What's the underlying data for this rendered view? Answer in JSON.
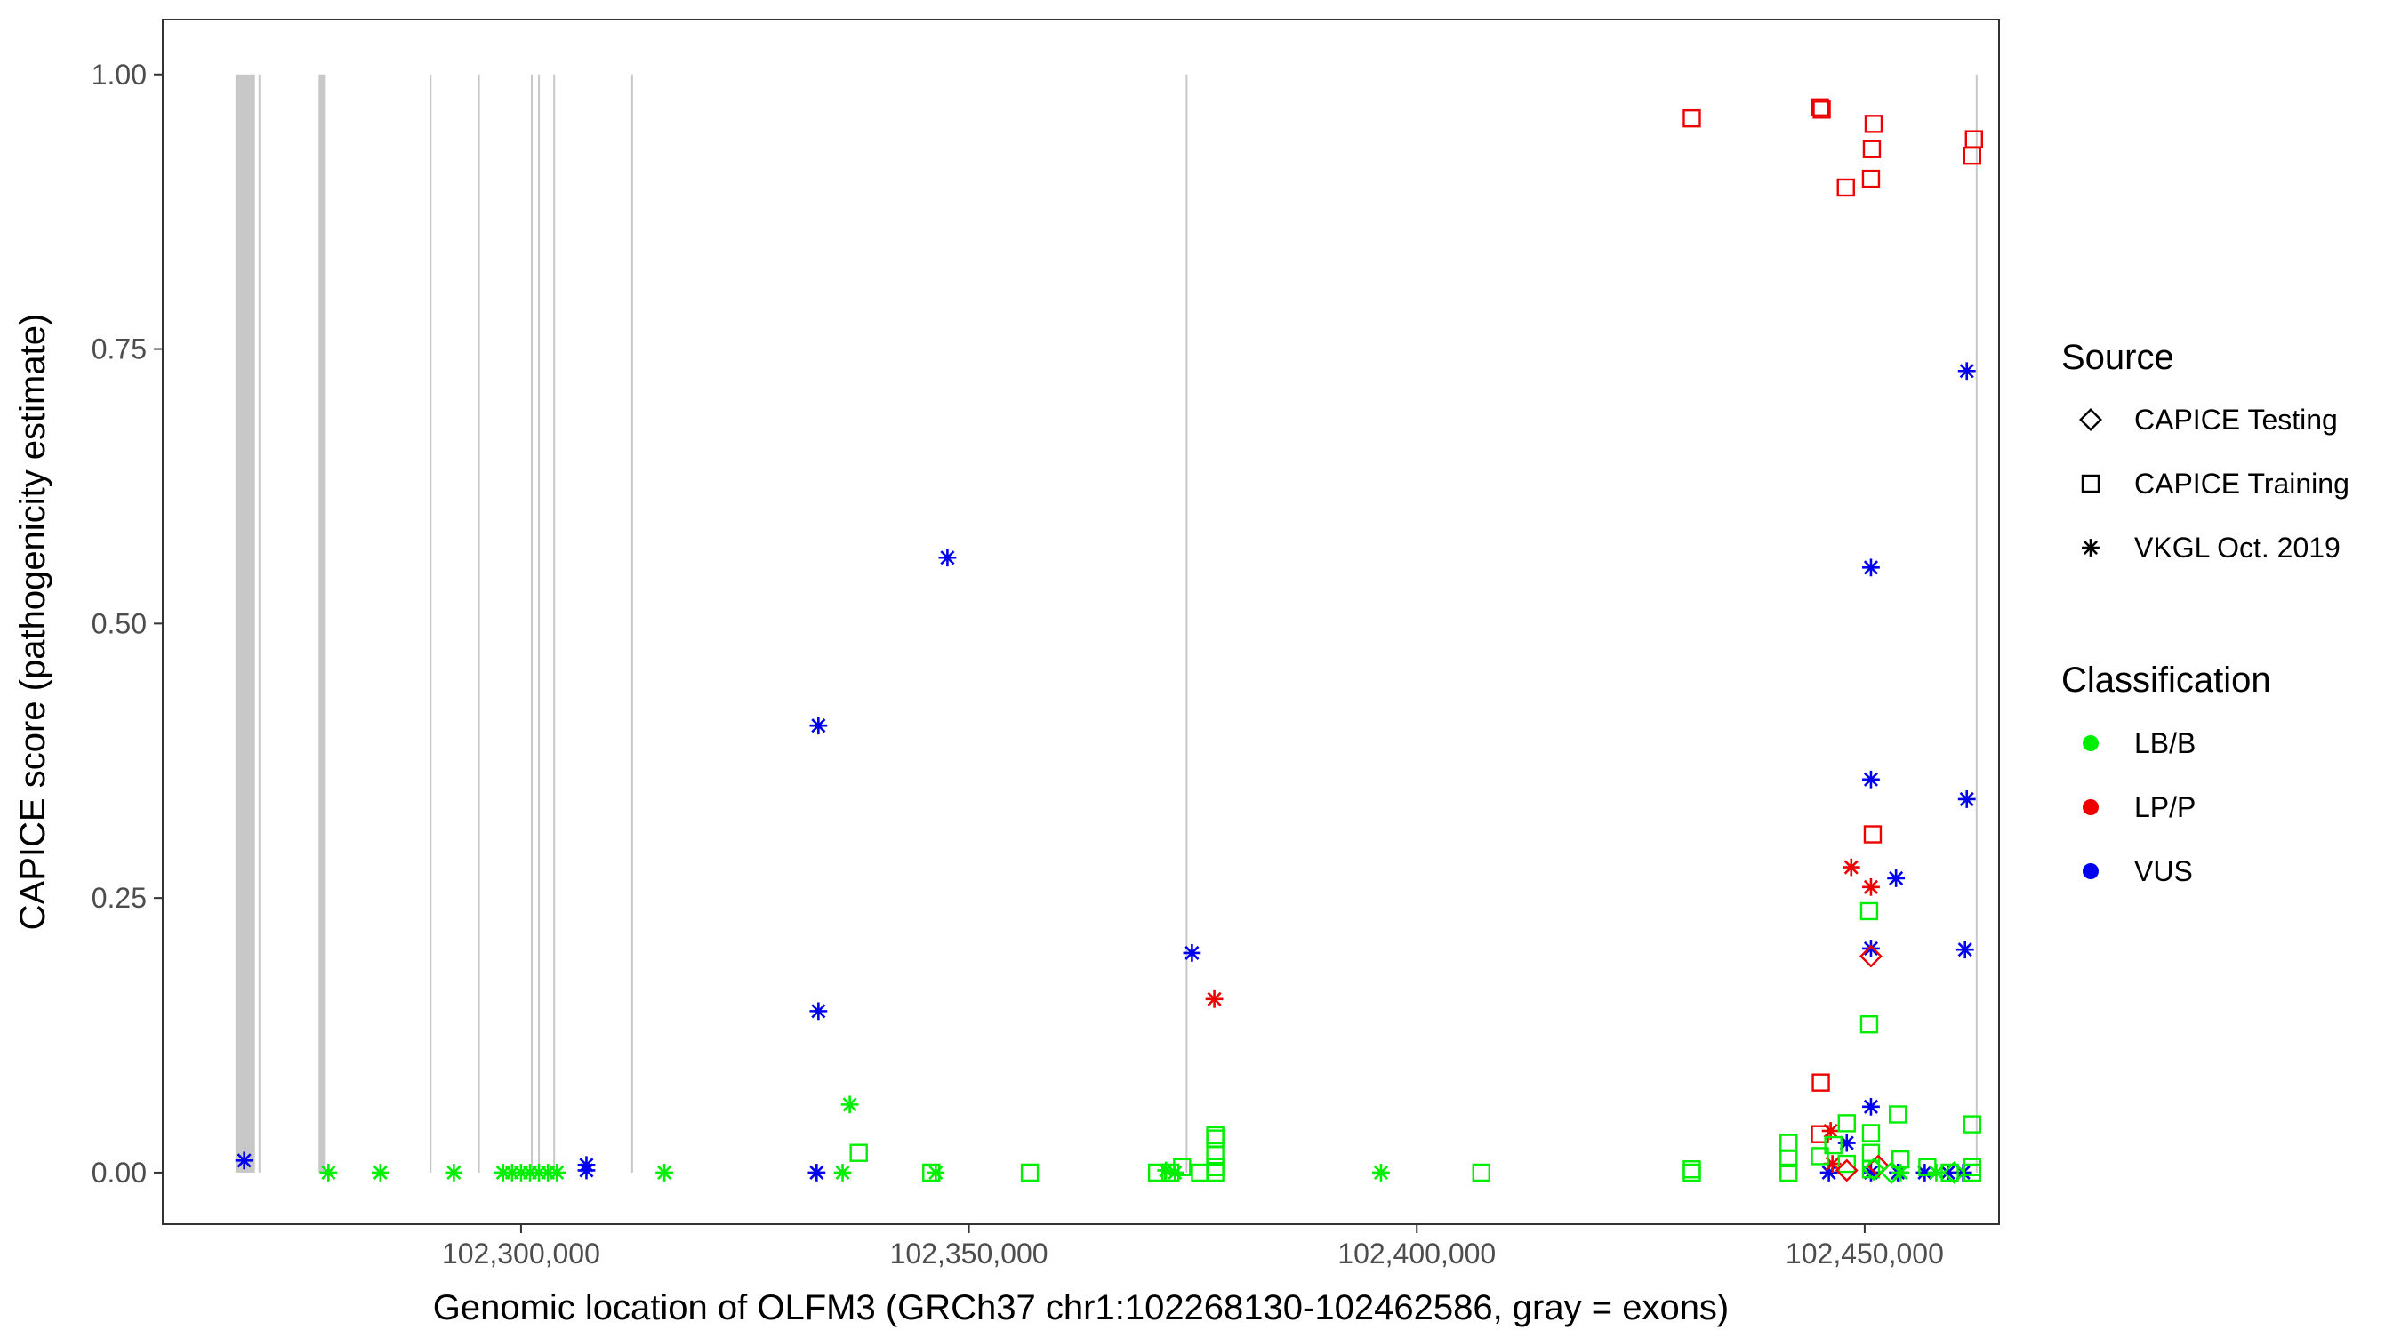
{
  "chart_data": {
    "type": "scatter",
    "xlabel": "Genomic location of OLFM3 (GRCh37 chr1:102268130-102462586, gray = exons)",
    "ylabel": "CAPICE score (pathogenicity estimate)",
    "xlim": [
      102260000,
      102465000
    ],
    "ylim": [
      -0.047,
      1.05
    ],
    "x_ticks": [
      102300000,
      102350000,
      102400000,
      102450000
    ],
    "x_tick_labels": [
      "102,300,000",
      "102,350,000",
      "102,400,000",
      "102,450,000"
    ],
    "y_ticks": [
      0,
      0.25,
      0.5,
      0.75,
      1.0
    ],
    "y_tick_labels": [
      "0.00",
      "0.25",
      "0.50",
      "0.75",
      "1.00"
    ],
    "grid": false,
    "exons": [
      {
        "start": 102268130,
        "end": 102270300
      },
      {
        "start": 102270700,
        "end": 102270900
      },
      {
        "start": 102277400,
        "end": 102278200
      },
      {
        "start": 102289800,
        "end": 102290000
      },
      {
        "start": 102295200,
        "end": 102295400
      },
      {
        "start": 102301100,
        "end": 102301300
      },
      {
        "start": 102301900,
        "end": 102302100
      },
      {
        "start": 102303600,
        "end": 102303800
      },
      {
        "start": 102312300,
        "end": 102312500
      },
      {
        "start": 102374200,
        "end": 102374400
      },
      {
        "start": 102462400,
        "end": 102462600
      }
    ],
    "legend": {
      "placement": "right",
      "source_title": "Source",
      "shape_entries": [
        {
          "label": "CAPICE Testing",
          "shape": "diamond"
        },
        {
          "label": "CAPICE Training",
          "shape": "square"
        },
        {
          "label": "VKGL Oct. 2019",
          "shape": "asterisk"
        }
      ],
      "classification_title": "Classification",
      "color_entries": [
        {
          "label": "LB/B",
          "color": "#00ee00"
        },
        {
          "label": "LP/P",
          "color": "#ee0000"
        },
        {
          "label": "VUS",
          "color": "#0000ee"
        }
      ]
    },
    "series": [
      {
        "name": "VUS",
        "source": "VKGL Oct. 2019",
        "shape": "asterisk",
        "color": "#0000ee",
        "points": [
          [
            102269100,
            0.011
          ],
          [
            102307300,
            0.007
          ],
          [
            102307300,
            0.002
          ],
          [
            102333200,
            0.407
          ],
          [
            102333200,
            0.147
          ],
          [
            102333000,
            0.0
          ],
          [
            102347600,
            0.56
          ],
          [
            102374900,
            0.2
          ],
          [
            102450700,
            0.551
          ],
          [
            102450700,
            0.358
          ],
          [
            102450700,
            0.204
          ],
          [
            102450700,
            0.06
          ],
          [
            102448000,
            0.027
          ],
          [
            102453500,
            0.268
          ],
          [
            102450700,
            0.0
          ],
          [
            102446000,
            0.0
          ],
          [
            102453700,
            0.0
          ],
          [
            102456700,
            0.0
          ],
          [
            102459300,
            0.0
          ],
          [
            102461400,
            0.73
          ],
          [
            102461400,
            0.34
          ],
          [
            102461200,
            0.203
          ],
          [
            102461000,
            0.0
          ]
        ]
      },
      {
        "name": "LP/P",
        "source": "VKGL Oct. 2019",
        "shape": "asterisk",
        "color": "#ee0000",
        "points": [
          [
            102377400,
            0.158
          ],
          [
            102448500,
            0.278
          ],
          [
            102450700,
            0.26
          ],
          [
            102446200,
            0.038
          ],
          [
            102446400,
            0.008
          ]
        ]
      },
      {
        "name": "LB/B",
        "source": "VKGL Oct. 2019",
        "shape": "asterisk",
        "color": "#00ee00",
        "points": [
          [
            102278500,
            0.0
          ],
          [
            102284300,
            0.0
          ],
          [
            102292500,
            0.0
          ],
          [
            102298000,
            0.0
          ],
          [
            102299000,
            0.0
          ],
          [
            102300000,
            0.0
          ],
          [
            102301000,
            0.0
          ],
          [
            102302000,
            0.0
          ],
          [
            102303000,
            0.0
          ],
          [
            102304000,
            0.0
          ],
          [
            102316000,
            0.0
          ],
          [
            102335900,
            0.0
          ],
          [
            102336700,
            0.062
          ],
          [
            102346300,
            0.0
          ],
          [
            102372000,
            0.002
          ],
          [
            102373000,
            0.0
          ],
          [
            102396000,
            0.0
          ],
          [
            102454000,
            0.0
          ],
          [
            102458000,
            0.0
          ]
        ]
      },
      {
        "name": "LP/P",
        "source": "CAPICE Training",
        "shape": "square",
        "color": "#ee0000",
        "points": [
          [
            102430700,
            0.96
          ],
          [
            102445000,
            0.97
          ],
          [
            102445200,
            0.968
          ],
          [
            102451000,
            0.955
          ],
          [
            102450800,
            0.932
          ],
          [
            102450700,
            0.905
          ],
          [
            102447900,
            0.897
          ],
          [
            102462200,
            0.941
          ],
          [
            102462000,
            0.926
          ],
          [
            102450900,
            0.308
          ],
          [
            102445100,
            0.082
          ],
          [
            102445000,
            0.035
          ]
        ]
      },
      {
        "name": "LB/B",
        "source": "CAPICE Training",
        "shape": "square",
        "color": "#00ee00",
        "points": [
          [
            102337700,
            0.018
          ],
          [
            102345800,
            0.0
          ],
          [
            102356800,
            0.0
          ],
          [
            102371000,
            0.0
          ],
          [
            102372500,
            0.0
          ],
          [
            102373800,
            0.005
          ],
          [
            102375800,
            0.0
          ],
          [
            102377500,
            0.034
          ],
          [
            102377500,
            0.031
          ],
          [
            102377500,
            0.016
          ],
          [
            102377500,
            0.005
          ],
          [
            102377500,
            0.0
          ],
          [
            102407200,
            0.0
          ],
          [
            102430700,
            0.0
          ],
          [
            102430700,
            0.003
          ],
          [
            102441500,
            0.027
          ],
          [
            102441500,
            0.013
          ],
          [
            102441500,
            0.0
          ],
          [
            102445000,
            0.015
          ],
          [
            102446500,
            0.025
          ],
          [
            102448000,
            0.045
          ],
          [
            102448000,
            0.008
          ],
          [
            102450500,
            0.238
          ],
          [
            102450500,
            0.135
          ],
          [
            102450700,
            0.036
          ],
          [
            102450700,
            0.018
          ],
          [
            102450700,
            0.003
          ],
          [
            102453700,
            0.053
          ],
          [
            102454000,
            0.012
          ],
          [
            102457000,
            0.005
          ],
          [
            102459500,
            0.0
          ],
          [
            102462000,
            0.044
          ],
          [
            102462000,
            0.005
          ],
          [
            102462000,
            0.0
          ]
        ]
      },
      {
        "name": "LP/P",
        "source": "CAPICE Testing",
        "shape": "diamond",
        "color": "#ee0000",
        "points": [
          [
            102450700,
            0.197
          ],
          [
            102451500,
            0.006
          ],
          [
            102448000,
            0.002
          ]
        ]
      },
      {
        "name": "LB/B",
        "source": "CAPICE Testing",
        "shape": "diamond",
        "color": "#00ee00",
        "points": [
          [
            102451000,
            0.003
          ],
          [
            102453000,
            0.0
          ],
          [
            102460000,
            0.0
          ]
        ]
      }
    ]
  }
}
